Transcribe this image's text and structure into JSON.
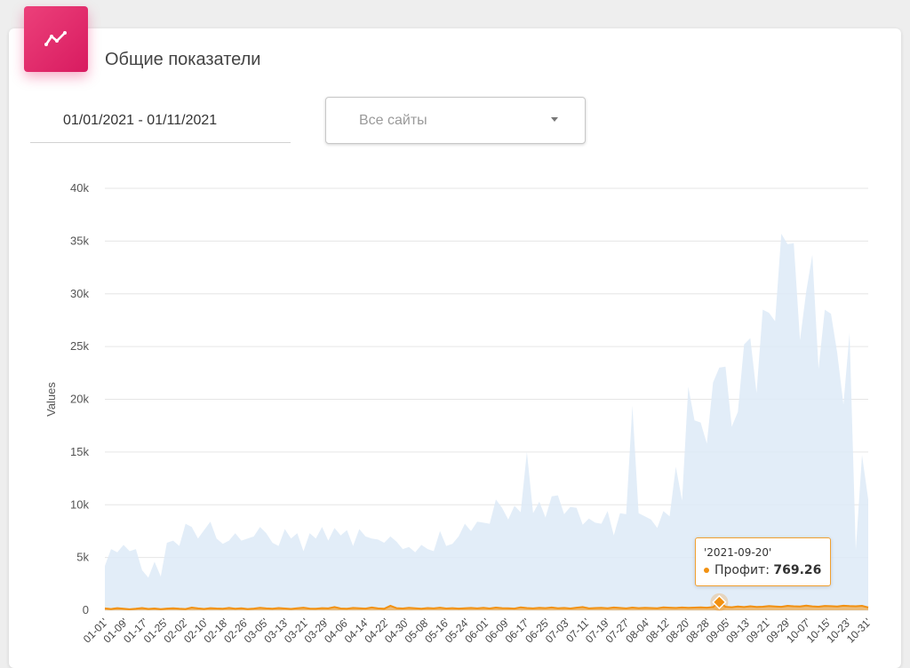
{
  "card": {
    "title": "Общие показатели",
    "icon": "trending-line-icon",
    "accent_color": "#e91e63"
  },
  "filters": {
    "date_range": "01/01/2021 - 01/11/2021",
    "site_select": "Все сайты"
  },
  "tooltip": {
    "date": "'2021-09-20'",
    "series": "Профит",
    "separator": ":",
    "value": "769.26"
  },
  "chart_data": {
    "type": "area",
    "ylabel": "Values",
    "ylim": [
      0,
      40000
    ],
    "y_ticks": [
      "0",
      "5k",
      "10k",
      "15k",
      "20k",
      "25k",
      "30k",
      "35k",
      "40k"
    ],
    "x_tick_labels": [
      "01-01'",
      "01-09'",
      "01-17'",
      "01-25'",
      "02-02'",
      "02-10'",
      "02-18'",
      "02-26'",
      "03-05'",
      "03-13'",
      "03-21'",
      "03-29'",
      "04-06'",
      "04-14'",
      "04-22'",
      "04-30'",
      "05-08'",
      "05-16'",
      "05-24'",
      "06-01'",
      "06-09'",
      "06-17'",
      "06-25'",
      "07-03'",
      "07-11'",
      "07-19'",
      "07-27'",
      "08-04'",
      "08-12'",
      "08-20'",
      "08-28'",
      "09-05'",
      "09-13'",
      "09-21'",
      "09-29'",
      "10-07'",
      "10-15'",
      "10-23'",
      "10-31'"
    ],
    "grid": true,
    "series": [
      {
        "name": "",
        "color": "#ddeaf7",
        "values": [
          4200,
          5800,
          5500,
          6200,
          5600,
          5800,
          3800,
          3100,
          4600,
          3200,
          6400,
          6600,
          6100,
          8200,
          7900,
          6800,
          7600,
          8400,
          6800,
          6300,
          6600,
          7300,
          6600,
          6800,
          7000,
          7900,
          7300,
          6400,
          6100,
          7700,
          6800,
          7300,
          5600,
          7300,
          6800,
          7900,
          6600,
          7800,
          7100,
          7600,
          6100,
          7700,
          7000,
          6800,
          6700,
          6400,
          7000,
          6500,
          5800,
          6000,
          5500,
          6200,
          5800,
          5600,
          7500,
          6100,
          6300,
          7000,
          8200,
          7500,
          8400,
          8300,
          8200,
          10500,
          9700,
          8600,
          9900,
          9300,
          15000,
          9200,
          10300,
          8800,
          10800,
          10900,
          9100,
          9800,
          9700,
          8100,
          8700,
          8300,
          8200,
          9400,
          7100,
          9200,
          9100,
          19400,
          9200,
          8900,
          8600,
          7800,
          9400,
          8900,
          13600,
          10400,
          21200,
          18000,
          17800,
          15800,
          21600,
          23000,
          23100,
          17400,
          18800,
          25200,
          25800,
          20600,
          28500,
          28200,
          27400,
          35700,
          34700,
          34800,
          25600,
          30200,
          33700,
          22900,
          28500,
          28100,
          24400,
          19500,
          26300,
          5700,
          14700,
          10500
        ]
      },
      {
        "name": "Профит",
        "color": "#f29111",
        "values": [
          180,
          120,
          200,
          150,
          90,
          140,
          210,
          130,
          170,
          100,
          160,
          190,
          140,
          120,
          250,
          180,
          130,
          200,
          170,
          150,
          220,
          140,
          190,
          120,
          160,
          230,
          180,
          140,
          210,
          170,
          130,
          190,
          240,
          160,
          140,
          200,
          180,
          300,
          170,
          150,
          220,
          190,
          160,
          260,
          180,
          140,
          420,
          200,
          170,
          230,
          190,
          150,
          210,
          180,
          240,
          170,
          200,
          160,
          190,
          220,
          180,
          230,
          170,
          250,
          200,
          190,
          160,
          280,
          210,
          180,
          230,
          200,
          260,
          190,
          220,
          170,
          240,
          300,
          180,
          210,
          230,
          190,
          260,
          220,
          180,
          250,
          200,
          230,
          210,
          190,
          270,
          240,
          220,
          260,
          230,
          250,
          280,
          240,
          300,
          769.26,
          330,
          290,
          350,
          300,
          380,
          320,
          340,
          400,
          360,
          330,
          420,
          380,
          350,
          450,
          370,
          340,
          410,
          390,
          360,
          430,
          400,
          380,
          420,
          260
        ]
      }
    ]
  }
}
